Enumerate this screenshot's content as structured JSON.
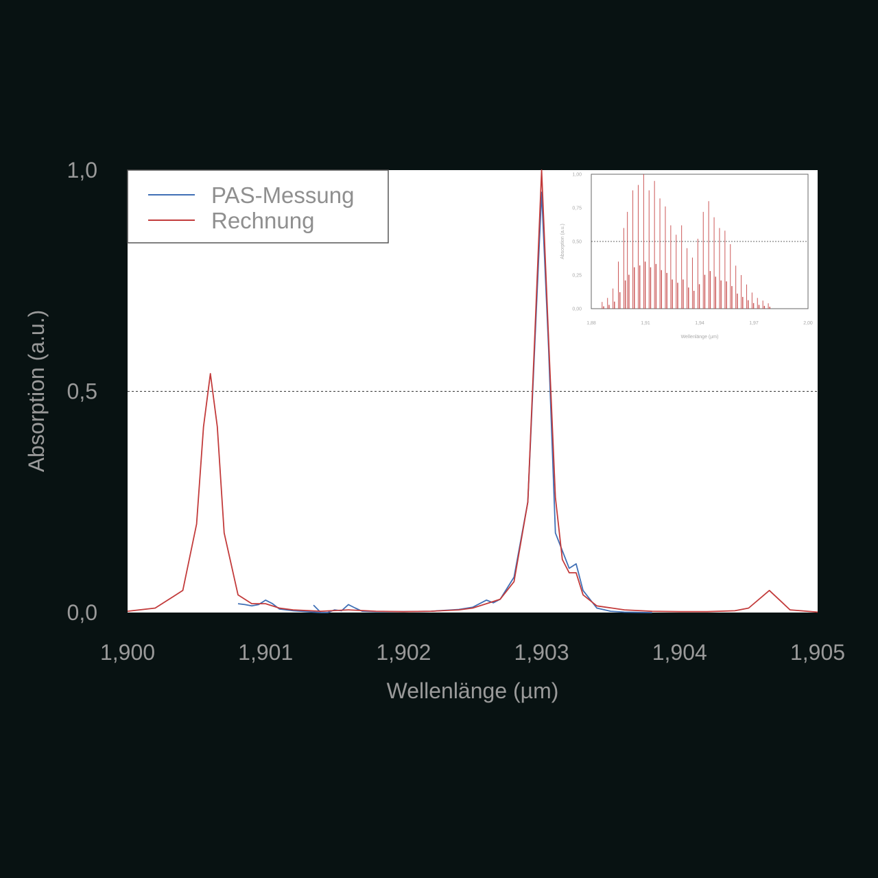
{
  "chart_data": [
    {
      "type": "line",
      "title": "",
      "xlabel": "Wellenlänge (µm)",
      "ylabel": "Absorption (a.u.)",
      "xlim": [
        1.9,
        1.905
      ],
      "ylim": [
        0,
        1.0
      ],
      "xticks": [
        "1,900",
        "1,901",
        "1,902",
        "1,903",
        "1,904",
        "1,905"
      ],
      "yticks": [
        "0,0",
        "0,5",
        "1,0"
      ],
      "reference_line_y": 0.5,
      "legend_position": "top-left",
      "series": [
        {
          "name": "PAS-Messung",
          "color": "#3f6fb5",
          "x": [
            1.9008,
            1.90085,
            1.9009,
            1.90095,
            1.901,
            1.90105,
            1.9011,
            1.9012,
            1.9013,
            1.9014,
            1.90135,
            1.9014,
            1.90145,
            1.9015,
            1.90155,
            1.9016,
            1.90165,
            1.9017,
            1.9018,
            1.902,
            1.9022,
            1.9024,
            1.9025,
            1.9026,
            1.90265,
            1.9027,
            1.9028,
            1.9029,
            1.90295,
            1.903,
            1.90305,
            1.9031,
            1.9032,
            1.90325,
            1.9033,
            1.9034,
            1.9035,
            1.9036,
            1.9038
          ],
          "y": [
            0.02,
            0.018,
            0.015,
            0.018,
            0.028,
            0.02,
            0.008,
            0.004,
            0.002,
            0.0,
            0.016,
            0.0,
            0.0,
            0.006,
            0.004,
            0.018,
            0.01,
            0.003,
            0.002,
            0.002,
            0.003,
            0.007,
            0.012,
            0.028,
            0.022,
            0.03,
            0.08,
            0.25,
            0.6,
            0.95,
            0.6,
            0.18,
            0.1,
            0.11,
            0.05,
            0.01,
            0.003,
            0.001,
            0.0
          ]
        },
        {
          "name": "Rechnung",
          "color": "#c23a3a",
          "x": [
            1.9,
            1.9002,
            1.9004,
            1.9005,
            1.90055,
            1.9006,
            1.90065,
            1.9007,
            1.9008,
            1.9009,
            1.901,
            1.9011,
            1.9012,
            1.9014,
            1.9016,
            1.9018,
            1.902,
            1.9022,
            1.9024,
            1.9025,
            1.9026,
            1.9027,
            1.9028,
            1.9029,
            1.90295,
            1.903,
            1.90305,
            1.9031,
            1.90315,
            1.9032,
            1.90325,
            1.9033,
            1.9034,
            1.9036,
            1.9038,
            1.904,
            1.9042,
            1.9044,
            1.9045,
            1.90465,
            1.9048,
            1.905
          ],
          "y": [
            0.003,
            0.01,
            0.05,
            0.2,
            0.42,
            0.54,
            0.42,
            0.18,
            0.04,
            0.02,
            0.02,
            0.01,
            0.006,
            0.003,
            0.006,
            0.003,
            0.002,
            0.003,
            0.006,
            0.01,
            0.02,
            0.03,
            0.07,
            0.25,
            0.62,
            1.0,
            0.62,
            0.26,
            0.12,
            0.09,
            0.09,
            0.04,
            0.015,
            0.006,
            0.003,
            0.002,
            0.002,
            0.004,
            0.01,
            0.05,
            0.006,
            0.001
          ]
        }
      ]
    },
    {
      "type": "line",
      "title": "",
      "xlabel": "Wellenlänge (µm)",
      "ylabel": "Absorption (a.u.)",
      "xlim": [
        1.88,
        2.0
      ],
      "ylim": [
        0,
        1.0
      ],
      "xticks": [
        "1,88",
        "1,91",
        "1,94",
        "1,97",
        "2,00"
      ],
      "yticks": [
        "0,00",
        "0,25",
        "0,50",
        "0,75",
        "1,00"
      ],
      "reference_line_y": 0.5,
      "series": [
        {
          "name": "",
          "color": "#c23a3a",
          "lines_x": [
            1.886,
            1.889,
            1.892,
            1.895,
            1.898,
            1.9,
            1.903,
            1.906,
            1.909,
            1.912,
            1.915,
            1.918,
            1.921,
            1.924,
            1.927,
            1.93,
            1.933,
            1.936,
            1.939,
            1.942,
            1.945,
            1.948,
            1.951,
            1.954,
            1.957,
            1.96,
            1.963,
            1.966,
            1.969,
            1.972,
            1.975,
            1.978
          ],
          "lines_y": [
            0.05,
            0.08,
            0.15,
            0.35,
            0.6,
            0.72,
            0.88,
            0.92,
            1.0,
            0.88,
            0.95,
            0.82,
            0.76,
            0.62,
            0.55,
            0.62,
            0.45,
            0.38,
            0.52,
            0.72,
            0.8,
            0.68,
            0.6,
            0.58,
            0.48,
            0.32,
            0.25,
            0.18,
            0.12,
            0.08,
            0.06,
            0.04
          ]
        }
      ]
    }
  ]
}
